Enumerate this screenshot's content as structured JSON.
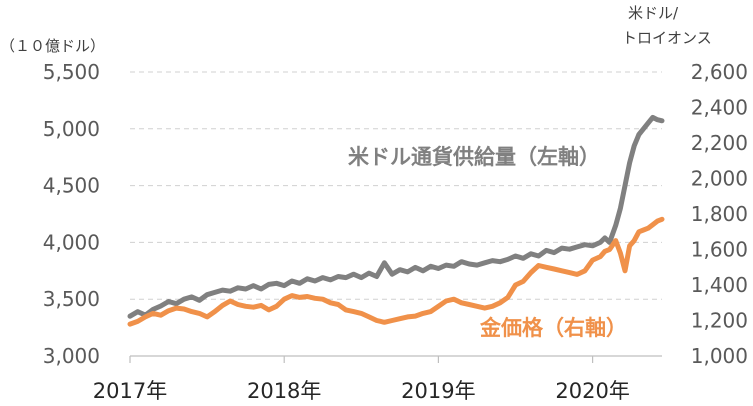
{
  "chart_data": {
    "type": "line",
    "left_axis": {
      "unit_label": "（１０億ドル）",
      "min": 3000,
      "max": 5500,
      "ticks": [
        "3,000",
        "3,500",
        "4,000",
        "4,500",
        "5,000",
        "5,500"
      ],
      "tick_values": [
        3000,
        3500,
        4000,
        4500,
        5000,
        5500
      ]
    },
    "right_axis": {
      "unit_label_line1": "米ドル/",
      "unit_label_line2": "トロイオンス",
      "min": 1000,
      "max": 2600,
      "ticks": [
        "1,000",
        "1,200",
        "1,400",
        "1,600",
        "1,800",
        "2,000",
        "2,200",
        "2,400",
        "2,600"
      ],
      "tick_values": [
        1000,
        1200,
        1400,
        1600,
        1800,
        2000,
        2200,
        2400,
        2600
      ]
    },
    "x_axis": {
      "ticks": [
        "2017年",
        "2018年",
        "2019年",
        "2020年"
      ],
      "tick_values": [
        2017.0,
        2018.0,
        2019.0,
        2020.0
      ],
      "min": 2017.0,
      "max": 2020.45
    },
    "grid": "horizontal-dashed",
    "series": [
      {
        "name": "米ドル通貨供給量（左軸）",
        "axis": "left",
        "color": "#808080",
        "x": [
          2017.0,
          2017.05,
          2017.1,
          2017.15,
          2017.2,
          2017.25,
          2017.3,
          2017.35,
          2017.4,
          2017.45,
          2017.5,
          2017.55,
          2017.6,
          2017.65,
          2017.7,
          2017.75,
          2017.8,
          2017.85,
          2017.9,
          2017.95,
          2018.0,
          2018.05,
          2018.1,
          2018.15,
          2018.2,
          2018.25,
          2018.3,
          2018.35,
          2018.4,
          2018.45,
          2018.5,
          2018.55,
          2018.6,
          2018.65,
          2018.7,
          2018.75,
          2018.8,
          2018.85,
          2018.9,
          2018.95,
          2019.0,
          2019.05,
          2019.1,
          2019.15,
          2019.2,
          2019.25,
          2019.3,
          2019.35,
          2019.4,
          2019.45,
          2019.5,
          2019.55,
          2019.6,
          2019.65,
          2019.7,
          2019.75,
          2019.8,
          2019.85,
          2019.9,
          2019.95,
          2020.0,
          2020.05,
          2020.08,
          2020.11,
          2020.15,
          2020.18,
          2020.21,
          2020.24,
          2020.27,
          2020.3,
          2020.33,
          2020.36,
          2020.39,
          2020.42,
          2020.45
        ],
        "values": [
          3350,
          3390,
          3360,
          3410,
          3440,
          3480,
          3460,
          3500,
          3520,
          3490,
          3540,
          3560,
          3580,
          3570,
          3600,
          3590,
          3620,
          3590,
          3630,
          3640,
          3620,
          3660,
          3640,
          3680,
          3660,
          3690,
          3670,
          3700,
          3690,
          3720,
          3690,
          3730,
          3700,
          3820,
          3720,
          3760,
          3740,
          3780,
          3750,
          3790,
          3770,
          3800,
          3790,
          3830,
          3810,
          3800,
          3820,
          3840,
          3830,
          3850,
          3880,
          3860,
          3900,
          3880,
          3930,
          3910,
          3950,
          3940,
          3960,
          3980,
          3970,
          4000,
          4040,
          4000,
          4150,
          4300,
          4500,
          4700,
          4850,
          4950,
          5000,
          5050,
          5100,
          5080,
          5070
        ]
      },
      {
        "name": "金価格（右軸）",
        "axis": "right",
        "color": "#f0914a",
        "x": [
          2017.0,
          2017.05,
          2017.1,
          2017.15,
          2017.2,
          2017.25,
          2017.3,
          2017.35,
          2017.4,
          2017.45,
          2017.5,
          2017.55,
          2017.6,
          2017.65,
          2017.7,
          2017.75,
          2017.8,
          2017.85,
          2017.9,
          2017.95,
          2018.0,
          2018.05,
          2018.1,
          2018.15,
          2018.2,
          2018.25,
          2018.3,
          2018.35,
          2018.4,
          2018.45,
          2018.5,
          2018.55,
          2018.6,
          2018.65,
          2018.7,
          2018.75,
          2018.8,
          2018.85,
          2018.9,
          2018.95,
          2019.0,
          2019.05,
          2019.1,
          2019.15,
          2019.2,
          2019.25,
          2019.3,
          2019.35,
          2019.4,
          2019.45,
          2019.5,
          2019.55,
          2019.6,
          2019.65,
          2019.7,
          2019.75,
          2019.8,
          2019.85,
          2019.9,
          2019.95,
          2020.0,
          2020.05,
          2020.08,
          2020.11,
          2020.15,
          2020.18,
          2020.21,
          2020.24,
          2020.27,
          2020.3,
          2020.33,
          2020.36,
          2020.39,
          2020.42,
          2020.45
        ],
        "values": [
          1180,
          1195,
          1220,
          1240,
          1230,
          1255,
          1270,
          1265,
          1250,
          1240,
          1220,
          1250,
          1285,
          1310,
          1290,
          1280,
          1275,
          1285,
          1260,
          1280,
          1320,
          1340,
          1330,
          1335,
          1325,
          1320,
          1300,
          1290,
          1260,
          1250,
          1240,
          1220,
          1200,
          1190,
          1200,
          1210,
          1220,
          1225,
          1240,
          1250,
          1280,
          1310,
          1320,
          1300,
          1290,
          1280,
          1270,
          1280,
          1300,
          1330,
          1400,
          1420,
          1470,
          1510,
          1500,
          1490,
          1480,
          1470,
          1460,
          1480,
          1540,
          1560,
          1590,
          1600,
          1650,
          1580,
          1480,
          1620,
          1650,
          1700,
          1710,
          1720,
          1740,
          1760,
          1770
        ]
      }
    ],
    "series_labels": [
      "米ドル通貨供給量（左軸）",
      "金価格（右軸）"
    ]
  }
}
